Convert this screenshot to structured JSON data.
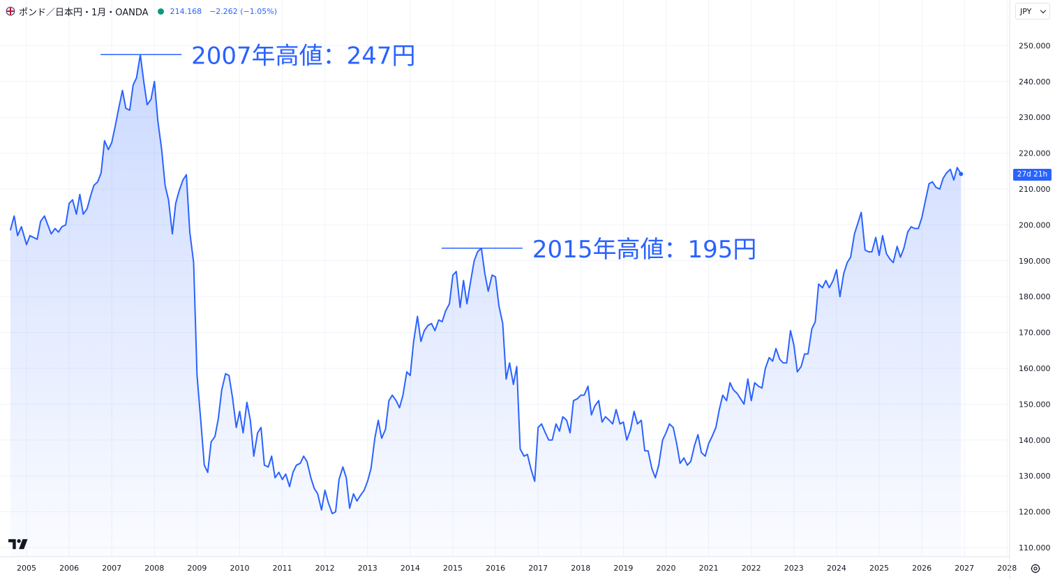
{
  "header": {
    "symbol": "ポンド／日本円・1月・OANDA",
    "price": "214.168",
    "change": "−2.262 (−1.05%)",
    "icon": "uk-flag-icon",
    "status_color": "#089981"
  },
  "currency": "JPY",
  "countdown": "27d 21h",
  "colors": {
    "line": "#2962ff",
    "annotation": "#2962ff",
    "grid": "#f0f3fa"
  },
  "chart_data": {
    "type": "area",
    "x_ticks": [
      "2005",
      "2006",
      "2007",
      "2008",
      "2009",
      "2010",
      "2011",
      "2012",
      "2013",
      "2014",
      "2015",
      "2016",
      "2017",
      "2018",
      "2019",
      "2020",
      "2021",
      "2022",
      "2023",
      "2024",
      "2025",
      "2026",
      "2027",
      "2028"
    ],
    "y_ticks": [
      "110.000",
      "120.000",
      "130.000",
      "140.000",
      "150.000",
      "160.000",
      "170.000",
      "180.000",
      "190.000",
      "200.000",
      "210.000",
      "220.000",
      "230.000",
      "240.000",
      "250.000"
    ],
    "ylim": [
      110,
      250
    ],
    "xlim": [
      2004.6,
      2028.0
    ],
    "series": [
      {
        "points": [
          [
            2004.62,
            198.5
          ],
          [
            2004.71,
            202.5
          ],
          [
            2004.79,
            197
          ],
          [
            2004.88,
            199.5
          ],
          [
            2005.0,
            194.5
          ],
          [
            2005.08,
            197
          ],
          [
            2005.25,
            196
          ],
          [
            2005.33,
            201
          ],
          [
            2005.42,
            202.5
          ],
          [
            2005.58,
            197.5
          ],
          [
            2005.67,
            199
          ],
          [
            2005.75,
            198
          ],
          [
            2005.83,
            199.5
          ],
          [
            2005.92,
            200
          ],
          [
            2006.0,
            206
          ],
          [
            2006.08,
            207
          ],
          [
            2006.17,
            203
          ],
          [
            2006.25,
            208.5
          ],
          [
            2006.33,
            203
          ],
          [
            2006.42,
            204.5
          ],
          [
            2006.5,
            208
          ],
          [
            2006.58,
            211
          ],
          [
            2006.67,
            212
          ],
          [
            2006.75,
            214.5
          ],
          [
            2006.83,
            223.5
          ],
          [
            2006.92,
            221
          ],
          [
            2007.0,
            223
          ],
          [
            2007.08,
            227.5
          ],
          [
            2007.17,
            233
          ],
          [
            2007.25,
            237.5
          ],
          [
            2007.33,
            232.5
          ],
          [
            2007.42,
            232
          ],
          [
            2007.5,
            239
          ],
          [
            2007.58,
            241
          ],
          [
            2007.67,
            247.5
          ],
          [
            2007.75,
            240
          ],
          [
            2007.83,
            233.5
          ],
          [
            2007.92,
            235
          ],
          [
            2008.0,
            240
          ],
          [
            2008.08,
            229
          ],
          [
            2008.17,
            221
          ],
          [
            2008.25,
            211
          ],
          [
            2008.33,
            207
          ],
          [
            2008.42,
            197.5
          ],
          [
            2008.5,
            206
          ],
          [
            2008.58,
            209.5
          ],
          [
            2008.67,
            212.5
          ],
          [
            2008.75,
            214
          ],
          [
            2008.83,
            198
          ],
          [
            2008.92,
            189.5
          ],
          [
            2009.0,
            158
          ],
          [
            2009.08,
            146.5
          ],
          [
            2009.17,
            133
          ],
          [
            2009.25,
            131
          ],
          [
            2009.33,
            139.5
          ],
          [
            2009.42,
            141
          ],
          [
            2009.5,
            146
          ],
          [
            2009.58,
            154
          ],
          [
            2009.67,
            158.5
          ],
          [
            2009.75,
            158
          ],
          [
            2009.83,
            152
          ],
          [
            2009.92,
            143.5
          ],
          [
            2010.0,
            148
          ],
          [
            2010.08,
            142
          ],
          [
            2010.17,
            150.5
          ],
          [
            2010.25,
            145.5
          ],
          [
            2010.33,
            135.5
          ],
          [
            2010.42,
            142
          ],
          [
            2010.5,
            143.5
          ],
          [
            2010.58,
            133
          ],
          [
            2010.67,
            132.5
          ],
          [
            2010.75,
            135.5
          ],
          [
            2010.83,
            129.5
          ],
          [
            2010.92,
            131
          ],
          [
            2011.0,
            129
          ],
          [
            2011.08,
            130.5
          ],
          [
            2011.17,
            127
          ],
          [
            2011.25,
            131
          ],
          [
            2011.33,
            133
          ],
          [
            2011.42,
            133.5
          ],
          [
            2011.5,
            135.5
          ],
          [
            2011.58,
            134
          ],
          [
            2011.67,
            129.5
          ],
          [
            2011.75,
            126.5
          ],
          [
            2011.83,
            125
          ],
          [
            2011.92,
            120.5
          ],
          [
            2012.0,
            126
          ],
          [
            2012.08,
            122.5
          ],
          [
            2012.17,
            119.5
          ],
          [
            2012.25,
            120
          ],
          [
            2012.33,
            129
          ],
          [
            2012.42,
            132.5
          ],
          [
            2012.5,
            129.5
          ],
          [
            2012.58,
            121
          ],
          [
            2012.67,
            125
          ],
          [
            2012.75,
            123
          ],
          [
            2012.83,
            124.5
          ],
          [
            2012.92,
            126
          ],
          [
            2013.0,
            128.5
          ],
          [
            2013.08,
            132
          ],
          [
            2013.17,
            140.5
          ],
          [
            2013.25,
            145.5
          ],
          [
            2013.33,
            140.5
          ],
          [
            2013.42,
            143
          ],
          [
            2013.5,
            151
          ],
          [
            2013.58,
            152.5
          ],
          [
            2013.67,
            151
          ],
          [
            2013.75,
            149
          ],
          [
            2013.83,
            152.5
          ],
          [
            2013.92,
            159
          ],
          [
            2014.0,
            158
          ],
          [
            2014.08,
            167.5
          ],
          [
            2014.17,
            174.5
          ],
          [
            2014.25,
            167.5
          ],
          [
            2014.33,
            170.5
          ],
          [
            2014.42,
            172
          ],
          [
            2014.5,
            172.5
          ],
          [
            2014.58,
            170.5
          ],
          [
            2014.67,
            173.5
          ],
          [
            2014.75,
            173
          ],
          [
            2014.83,
            176
          ],
          [
            2014.92,
            178
          ],
          [
            2015.0,
            186
          ],
          [
            2015.08,
            187
          ],
          [
            2015.17,
            177
          ],
          [
            2015.25,
            184.5
          ],
          [
            2015.33,
            178
          ],
          [
            2015.42,
            184.5
          ],
          [
            2015.5,
            190
          ],
          [
            2015.58,
            192.5
          ],
          [
            2015.67,
            193.5
          ],
          [
            2015.75,
            186.5
          ],
          [
            2015.83,
            181.5
          ],
          [
            2015.92,
            186
          ],
          [
            2016.0,
            185.5
          ],
          [
            2016.08,
            177.5
          ],
          [
            2016.17,
            172.5
          ],
          [
            2016.25,
            157
          ],
          [
            2016.33,
            161.5
          ],
          [
            2016.42,
            155.5
          ],
          [
            2016.5,
            160.5
          ],
          [
            2016.58,
            137.5
          ],
          [
            2016.67,
            135.5
          ],
          [
            2016.75,
            136
          ],
          [
            2016.83,
            132
          ],
          [
            2016.92,
            128.5
          ],
          [
            2017.0,
            143.5
          ],
          [
            2017.08,
            144.5
          ],
          [
            2017.17,
            142
          ],
          [
            2017.25,
            140
          ],
          [
            2017.33,
            140
          ],
          [
            2017.42,
            144.5
          ],
          [
            2017.5,
            142.5
          ],
          [
            2017.58,
            146.5
          ],
          [
            2017.67,
            145.5
          ],
          [
            2017.75,
            142
          ],
          [
            2017.83,
            151
          ],
          [
            2017.92,
            151.5
          ],
          [
            2018.0,
            152.5
          ],
          [
            2018.08,
            152.5
          ],
          [
            2018.17,
            155
          ],
          [
            2018.25,
            147
          ],
          [
            2018.33,
            149.5
          ],
          [
            2018.42,
            151
          ],
          [
            2018.5,
            145
          ],
          [
            2018.58,
            146.5
          ],
          [
            2018.67,
            145.5
          ],
          [
            2018.75,
            144.5
          ],
          [
            2018.83,
            148.5
          ],
          [
            2018.92,
            144.5
          ],
          [
            2019.0,
            145
          ],
          [
            2019.08,
            140
          ],
          [
            2019.17,
            143
          ],
          [
            2019.25,
            148
          ],
          [
            2019.33,
            144.5
          ],
          [
            2019.42,
            145.5
          ],
          [
            2019.5,
            137
          ],
          [
            2019.58,
            137
          ],
          [
            2019.67,
            132
          ],
          [
            2019.75,
            129.5
          ],
          [
            2019.83,
            133
          ],
          [
            2019.92,
            140
          ],
          [
            2020.0,
            142
          ],
          [
            2020.08,
            144.5
          ],
          [
            2020.17,
            143.5
          ],
          [
            2020.25,
            139
          ],
          [
            2020.33,
            133.5
          ],
          [
            2020.42,
            135
          ],
          [
            2020.5,
            133
          ],
          [
            2020.58,
            134
          ],
          [
            2020.67,
            138.5
          ],
          [
            2020.75,
            141.5
          ],
          [
            2020.83,
            136.5
          ],
          [
            2020.92,
            135.5
          ],
          [
            2021.0,
            139
          ],
          [
            2021.08,
            141
          ],
          [
            2021.17,
            143.5
          ],
          [
            2021.25,
            148.5
          ],
          [
            2021.33,
            152.5
          ],
          [
            2021.42,
            151
          ],
          [
            2021.5,
            156
          ],
          [
            2021.58,
            154
          ],
          [
            2021.67,
            153
          ],
          [
            2021.75,
            151.5
          ],
          [
            2021.83,
            150
          ],
          [
            2021.92,
            157
          ],
          [
            2022.0,
            151
          ],
          [
            2022.08,
            156
          ],
          [
            2022.17,
            155
          ],
          [
            2022.25,
            154.5
          ],
          [
            2022.33,
            160
          ],
          [
            2022.42,
            163
          ],
          [
            2022.5,
            162
          ],
          [
            2022.58,
            165.5
          ],
          [
            2022.67,
            162.5
          ],
          [
            2022.75,
            161.5
          ],
          [
            2022.83,
            161.5
          ],
          [
            2022.92,
            170.5
          ],
          [
            2023.0,
            166.5
          ],
          [
            2023.08,
            159
          ],
          [
            2023.17,
            160.5
          ],
          [
            2023.25,
            164
          ],
          [
            2023.33,
            164
          ],
          [
            2023.42,
            171
          ],
          [
            2023.5,
            173
          ],
          [
            2023.58,
            183.5
          ],
          [
            2023.67,
            182.5
          ],
          [
            2023.75,
            184.5
          ],
          [
            2023.83,
            182.5
          ],
          [
            2023.92,
            184.5
          ],
          [
            2024.0,
            187.5
          ],
          [
            2024.08,
            180
          ],
          [
            2024.17,
            186.5
          ],
          [
            2024.25,
            189.5
          ],
          [
            2024.33,
            191
          ],
          [
            2024.42,
            197.5
          ],
          [
            2024.5,
            200.5
          ],
          [
            2024.58,
            203.5
          ],
          [
            2024.67,
            193
          ],
          [
            2024.75,
            192.5
          ],
          [
            2024.83,
            192.5
          ],
          [
            2024.92,
            196.5
          ],
          [
            2025.0,
            191.5
          ],
          [
            2025.08,
            197
          ],
          [
            2025.17,
            192
          ],
          [
            2025.25,
            190.5
          ],
          [
            2025.33,
            189.5
          ],
          [
            2025.42,
            194
          ],
          [
            2025.5,
            191
          ],
          [
            2025.58,
            193.5
          ],
          [
            2025.67,
            198
          ],
          [
            2025.75,
            199.5
          ],
          [
            2025.83,
            199
          ],
          [
            2025.92,
            199
          ],
          [
            2026.0,
            202
          ],
          [
            2026.08,
            206.5
          ],
          [
            2026.17,
            211.5
          ],
          [
            2026.25,
            212
          ],
          [
            2026.33,
            210.5
          ],
          [
            2026.42,
            210
          ],
          [
            2026.5,
            213
          ],
          [
            2026.58,
            214.5
          ],
          [
            2026.67,
            215.5
          ],
          [
            2026.75,
            212.5
          ],
          [
            2026.83,
            216
          ],
          [
            2026.92,
            214.2
          ]
        ]
      }
    ],
    "annotations": [
      {
        "text": "2007年高値：247円",
        "x": 2007.67,
        "y": 247.5
      },
      {
        "text": "2015年高値：195円",
        "x": 2015.67,
        "y": 193.5
      }
    ],
    "grid": true
  }
}
